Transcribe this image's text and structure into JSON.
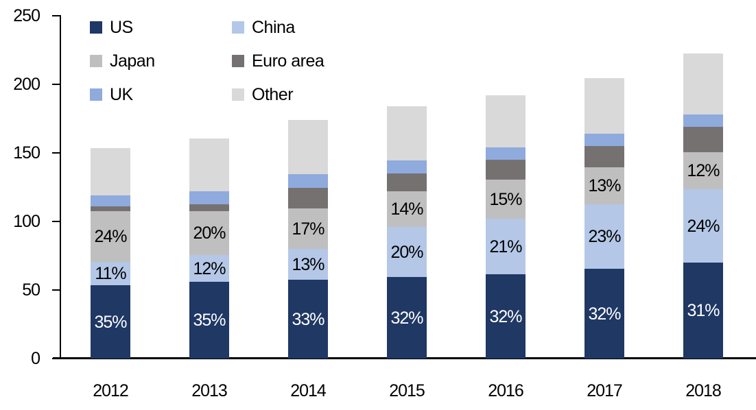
{
  "chart_data": {
    "type": "bar",
    "stacked": true,
    "title": "",
    "xlabel": "",
    "ylabel": "",
    "categories": [
      "2012",
      "2013",
      "2014",
      "2015",
      "2016",
      "2017",
      "2018"
    ],
    "ylim": [
      0,
      250
    ],
    "yticks": [
      0,
      50,
      100,
      150,
      200,
      250
    ],
    "grid": false,
    "legend_position": "top-left",
    "legend_rows": [
      [
        "US",
        "China"
      ],
      [
        "Japan",
        "Euro area"
      ],
      [
        "UK",
        "Other"
      ]
    ],
    "stack_order_bottom_to_top": [
      "US",
      "China",
      "Japan",
      "Euro area",
      "UK",
      "Other"
    ],
    "series": [
      {
        "name": "US",
        "color": "#1f3864",
        "values": [
          53.5,
          56,
          57.5,
          59.5,
          61.5,
          65.5,
          70
        ],
        "labels": [
          "35%",
          "35%",
          "33%",
          "32%",
          "32%",
          "32%",
          "31%"
        ],
        "label_color": "#ffffff"
      },
      {
        "name": "China",
        "color": "#b4c7e7",
        "values": [
          17,
          19.5,
          22.5,
          36.5,
          40.5,
          47,
          53.5
        ],
        "labels": [
          "11%",
          "12%",
          "13%",
          "20%",
          "21%",
          "23%",
          "24%"
        ],
        "label_color": "#000000"
      },
      {
        "name": "Japan",
        "color": "#bfbfbf",
        "values": [
          37,
          32,
          29.5,
          26,
          28.5,
          27,
          27
        ],
        "labels": [
          "24%",
          "20%",
          "17%",
          "14%",
          "15%",
          "13%",
          "12%"
        ],
        "label_color": "#000000"
      },
      {
        "name": "Euro area",
        "color": "#767171",
        "values": [
          3.5,
          5,
          15,
          13,
          14.5,
          15.5,
          18.5
        ]
      },
      {
        "name": "UK",
        "color": "#8faadc",
        "values": [
          8,
          9.5,
          10,
          9.5,
          9,
          9,
          9
        ]
      },
      {
        "name": "Other",
        "color": "#d9d9d9",
        "values": [
          34.5,
          38.5,
          39.5,
          39.5,
          38,
          40.5,
          44.5
        ]
      }
    ],
    "totals": [
      153.5,
      160.5,
      174,
      184,
      192,
      204.5,
      222.5
    ],
    "colors": {
      "axis": "#000000",
      "text": "#000000",
      "background": "#ffffff"
    }
  }
}
